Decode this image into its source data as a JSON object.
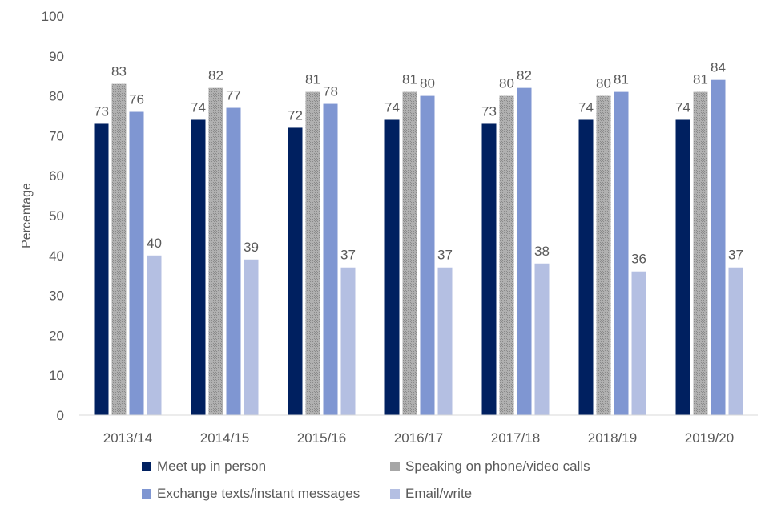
{
  "chart_data": {
    "type": "bar",
    "ylabel": "Percentage",
    "ylim": [
      0,
      100
    ],
    "yticks": [
      0,
      10,
      20,
      30,
      40,
      50,
      60,
      70,
      80,
      90,
      100
    ],
    "grid": false,
    "legend_position": "bottom",
    "categories": [
      "2013/14",
      "2014/15",
      "2015/16",
      "2016/17",
      "2017/18",
      "2018/19",
      "2019/20"
    ],
    "series": [
      {
        "name": "Meet up in person",
        "color": "#002060",
        "values": [
          73,
          74,
          72,
          74,
          73,
          74,
          74
        ]
      },
      {
        "name": "Speaking on phone/video calls",
        "color": "#a6a6a6",
        "pattern": "dotted",
        "values": [
          83,
          82,
          81,
          81,
          80,
          80,
          81
        ]
      },
      {
        "name": "Exchange texts/instant messages",
        "color": "#7f96d2",
        "values": [
          76,
          77,
          78,
          80,
          82,
          81,
          84
        ]
      },
      {
        "name": "Email/write",
        "color": "#b4bfe2",
        "values": [
          40,
          39,
          37,
          37,
          38,
          36,
          37
        ]
      }
    ]
  }
}
